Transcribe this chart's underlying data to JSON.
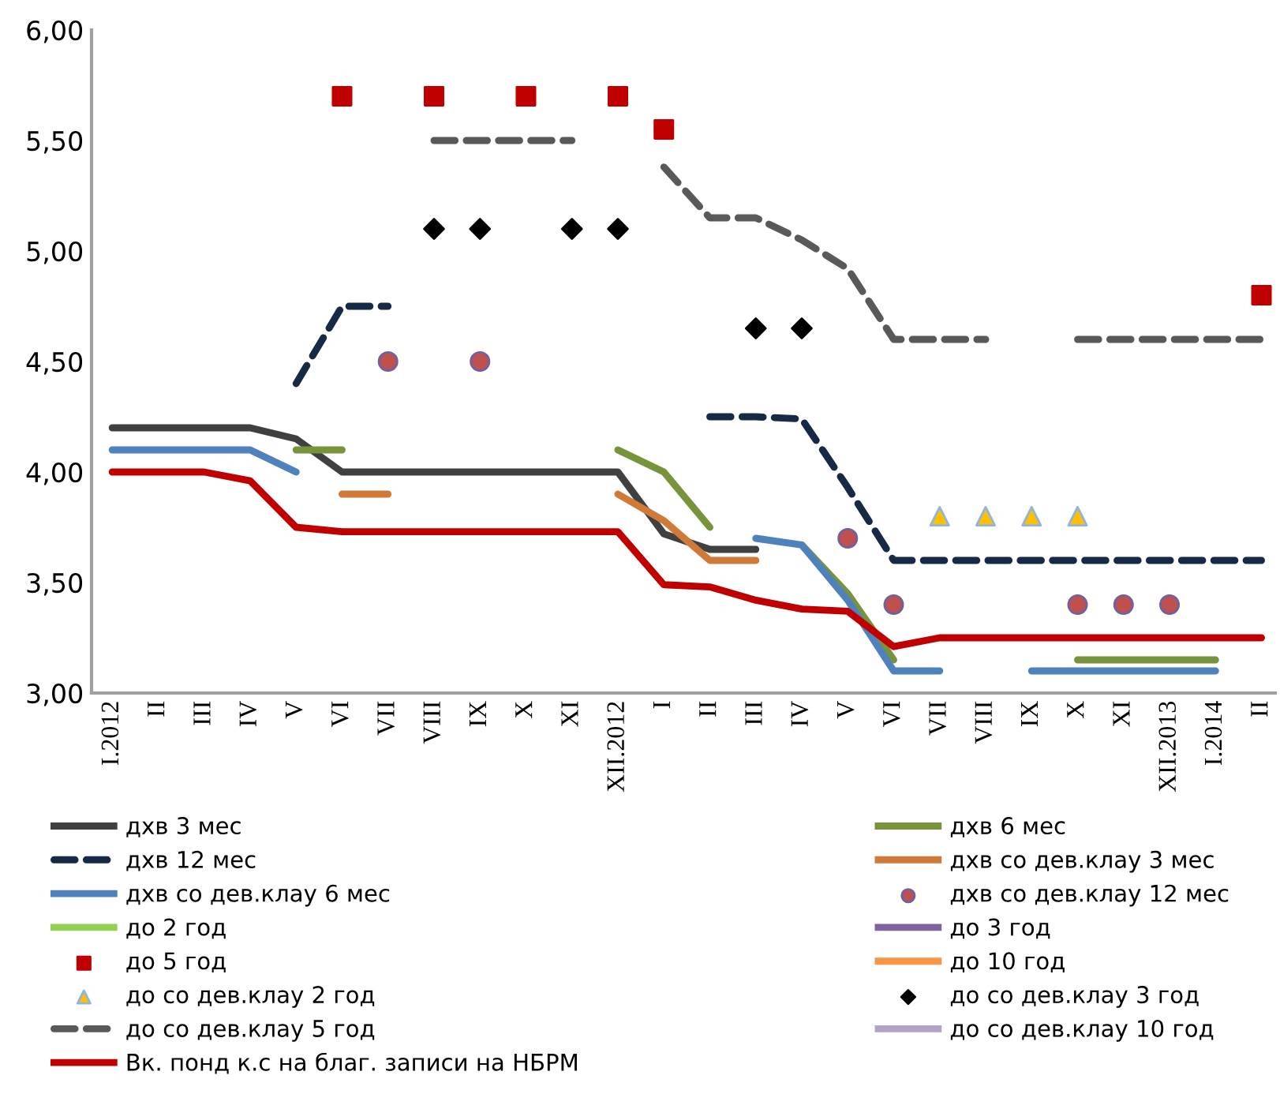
{
  "chart_data": {
    "type": "line",
    "categories": [
      "I.2012",
      "II",
      "III",
      "IV",
      "V",
      "VI",
      "VII",
      "VIII",
      "IX",
      "X",
      "XI",
      "XII.2012",
      "I",
      "II",
      "III",
      "IV",
      "V",
      "VI",
      "VII",
      "VIII",
      "IX",
      "X",
      "XI",
      "XII.2013",
      "I.2014",
      "II"
    ],
    "ylim": [
      3.0,
      6.0
    ],
    "yticks": [
      {
        "value": 3.0,
        "label": "3,00"
      },
      {
        "value": 3.5,
        "label": "3,50"
      },
      {
        "value": 4.0,
        "label": "4,00"
      },
      {
        "value": 4.5,
        "label": "4,50"
      },
      {
        "value": 5.0,
        "label": "5,00"
      },
      {
        "value": 5.5,
        "label": "5,50"
      },
      {
        "value": 6.0,
        "label": "6,00"
      }
    ],
    "grid": false,
    "legend": "bottom",
    "series": [
      {
        "name": "дхв 3 мес",
        "color": "#404040",
        "values": [
          4.2,
          4.2,
          4.2,
          4.2,
          4.15,
          4.0,
          4.0,
          4.0,
          4.0,
          4.0,
          4.0,
          4.0,
          3.72,
          3.65,
          3.65,
          null,
          null,
          null,
          null,
          null,
          null,
          null,
          null,
          null,
          null,
          null
        ]
      },
      {
        "name": "дхв 6 мес",
        "color": "#77933c",
        "values": [
          null,
          null,
          null,
          null,
          4.1,
          4.1,
          null,
          null,
          null,
          null,
          null,
          4.1,
          4.0,
          3.75,
          null,
          3.67,
          3.45,
          3.15,
          null,
          null,
          null,
          3.15,
          3.15,
          3.15,
          3.15,
          null
        ]
      },
      {
        "name": "дхв 12 мес",
        "color": "#172a45",
        "line_style": "dashed",
        "values": [
          null,
          null,
          null,
          null,
          4.4,
          4.75,
          4.75,
          null,
          null,
          null,
          null,
          null,
          null,
          4.25,
          4.25,
          4.24,
          3.93,
          3.6,
          3.6,
          3.6,
          3.6,
          3.6,
          3.6,
          3.6,
          3.6,
          3.6
        ]
      },
      {
        "name": "дхв со дев.клау 3 мес",
        "color": "#d07a3a",
        "values": [
          null,
          null,
          null,
          null,
          null,
          3.9,
          3.9,
          null,
          null,
          null,
          null,
          3.9,
          3.78,
          3.6,
          3.6,
          null,
          null,
          null,
          null,
          null,
          null,
          null,
          null,
          null,
          null,
          null
        ]
      },
      {
        "name": "дхв со дев.клау 6 мес",
        "color": "#4f81bd",
        "values": [
          4.1,
          4.1,
          4.1,
          4.1,
          4.0,
          null,
          null,
          null,
          null,
          null,
          null,
          null,
          null,
          null,
          3.7,
          3.67,
          3.42,
          3.1,
          3.1,
          null,
          3.1,
          3.1,
          3.1,
          3.1,
          3.1,
          null
        ]
      },
      {
        "name": "дхв со дев.клау 12 мес",
        "type": "scatter",
        "marker": "circle",
        "color": "#c0504d",
        "values": [
          null,
          null,
          null,
          null,
          null,
          null,
          4.5,
          null,
          4.5,
          null,
          null,
          null,
          null,
          null,
          null,
          null,
          3.7,
          3.4,
          null,
          null,
          null,
          3.4,
          3.4,
          3.4,
          null,
          null
        ]
      },
      {
        "name": "до 2 год",
        "color": "#92d050",
        "values": [
          null,
          null,
          null,
          null,
          null,
          null,
          null,
          null,
          null,
          null,
          null,
          null,
          null,
          null,
          null,
          null,
          null,
          null,
          null,
          null,
          null,
          null,
          null,
          null,
          null,
          null
        ]
      },
      {
        "name": "до 3 год",
        "color": "#8064a2",
        "values": [
          null,
          null,
          null,
          null,
          null,
          null,
          null,
          null,
          null,
          null,
          null,
          null,
          null,
          null,
          null,
          null,
          null,
          null,
          null,
          null,
          null,
          null,
          null,
          null,
          null,
          null
        ]
      },
      {
        "name": "до 5 год",
        "type": "scatter",
        "marker": "square",
        "color": "#c00000",
        "values": [
          null,
          null,
          null,
          null,
          null,
          5.7,
          null,
          5.7,
          null,
          5.7,
          null,
          5.7,
          5.55,
          null,
          null,
          null,
          null,
          null,
          null,
          null,
          null,
          null,
          null,
          null,
          null,
          4.8
        ]
      },
      {
        "name": "до 10 год",
        "color": "#f79646",
        "values": [
          null,
          null,
          null,
          null,
          null,
          null,
          null,
          null,
          null,
          null,
          null,
          null,
          null,
          null,
          null,
          null,
          null,
          null,
          null,
          null,
          null,
          null,
          null,
          null,
          null,
          null
        ]
      },
      {
        "name": "до со дев.клау 2 год",
        "type": "scatter",
        "marker": "triangle",
        "color": "#ffc000",
        "values": [
          null,
          null,
          null,
          null,
          null,
          null,
          null,
          null,
          null,
          null,
          null,
          null,
          null,
          null,
          null,
          null,
          null,
          null,
          3.8,
          3.8,
          3.8,
          3.8,
          null,
          null,
          null,
          null
        ]
      },
      {
        "name": "до со дев.клау 3 год",
        "type": "scatter",
        "marker": "diamond",
        "color": "#000000",
        "values": [
          null,
          null,
          null,
          null,
          null,
          null,
          null,
          5.1,
          5.1,
          null,
          5.1,
          5.1,
          null,
          null,
          4.65,
          4.65,
          null,
          null,
          null,
          null,
          null,
          null,
          null,
          null,
          null,
          null
        ]
      },
      {
        "name": "до со дев.клау 5 год",
        "color": "#595959",
        "line_style": "dashed",
        "values": [
          null,
          null,
          null,
          null,
          null,
          null,
          null,
          5.5,
          5.5,
          5.5,
          5.5,
          null,
          5.38,
          5.15,
          5.15,
          5.05,
          4.92,
          4.6,
          4.6,
          4.6,
          null,
          4.6,
          4.6,
          4.6,
          4.6,
          4.6
        ]
      },
      {
        "name": "до со дев.клау 10 год",
        "color": "#b3a2c7",
        "values": [
          null,
          null,
          null,
          null,
          null,
          null,
          null,
          null,
          null,
          null,
          null,
          null,
          null,
          null,
          null,
          null,
          null,
          null,
          null,
          null,
          null,
          null,
          null,
          null,
          null,
          null
        ]
      },
      {
        "name": "Вк. понд к.с на благ. записи на НБРМ",
        "color": "#c00000",
        "values": [
          4.0,
          4.0,
          4.0,
          3.96,
          3.75,
          3.73,
          3.73,
          3.73,
          3.73,
          3.73,
          3.73,
          3.73,
          3.49,
          3.48,
          3.42,
          3.38,
          3.37,
          3.21,
          3.25,
          3.25,
          3.25,
          3.25,
          3.25,
          3.25,
          3.25,
          3.25
        ]
      }
    ]
  }
}
